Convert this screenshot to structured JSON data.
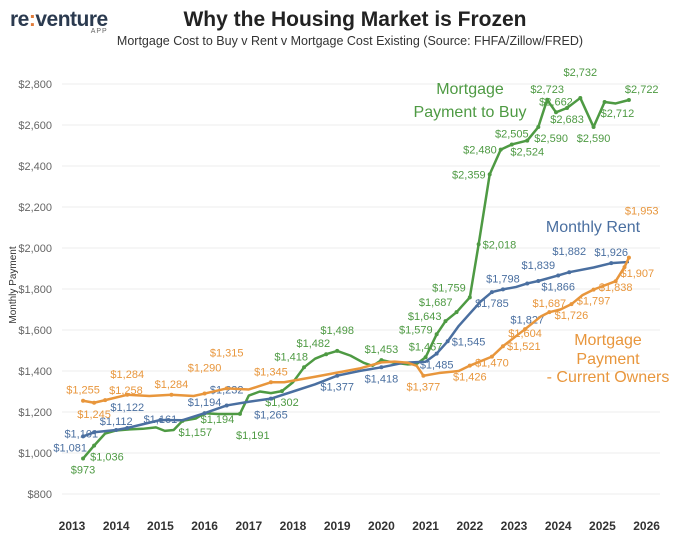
{
  "logo": {
    "brand_a": "re",
    "brand_sep": ":",
    "brand_b": "venture",
    "sub": "APP"
  },
  "chart_data": {
    "type": "line",
    "title": "Why the Housing Market is Frozen",
    "subtitle": "Mortgage Cost to Buy v Rent v Mortgage Cost Existing (Source: FHFA/Zillow/FRED)",
    "xlabel": "",
    "ylabel": "Monthly Payment",
    "xlim": [
      2013,
      2026
    ],
    "ylim": [
      750,
      2900
    ],
    "xticks": [
      "2013",
      "2014",
      "2015",
      "2016",
      "2017",
      "2018",
      "2019",
      "2020",
      "2021",
      "2022",
      "2023",
      "2024",
      "2025",
      "2026"
    ],
    "yticks": [
      800,
      1000,
      1200,
      1400,
      1600,
      1800,
      2000,
      2200,
      2400,
      2600,
      2800
    ],
    "ytick_labels": [
      "$800",
      "$1,000",
      "$1,200",
      "$1,400",
      "$1,600",
      "$1,800",
      "$2,000",
      "$2,200",
      "$2,400",
      "$2,600",
      "$2,800"
    ],
    "grid": "horizontal",
    "series": [
      {
        "name": "Mortgage Payment to Buy",
        "color": "#4e9a43",
        "annotation": [
          "Mortgage",
          "Payment to Buy"
        ],
        "points": [
          [
            2013.25,
            973,
            "b"
          ],
          [
            2013.5,
            1036,
            "br"
          ],
          [
            2013.75,
            1095,
            null
          ],
          [
            2014,
            1110,
            null
          ],
          [
            2014.3,
            1115,
            null
          ],
          [
            2014.6,
            1118,
            null
          ],
          [
            2014.9,
            1125,
            null
          ],
          [
            2015.1,
            1108,
            null
          ],
          [
            2015.3,
            1112,
            null
          ],
          [
            2015.5,
            1157,
            "br"
          ],
          [
            2015.8,
            1168,
            null
          ],
          [
            2016,
            1194,
            "br"
          ],
          [
            2016.3,
            1190,
            null
          ],
          [
            2016.6,
            1190,
            null
          ],
          [
            2016.8,
            1191,
            "br"
          ],
          [
            2017,
            1280,
            null
          ],
          [
            2017.25,
            1300,
            null
          ],
          [
            2017.5,
            1292,
            null
          ],
          [
            2017.75,
            1302,
            "b"
          ],
          [
            2018,
            1345,
            null
          ],
          [
            2018.25,
            1418,
            "al"
          ],
          [
            2018.5,
            1460,
            null
          ],
          [
            2018.75,
            1482,
            "al"
          ],
          [
            2019,
            1498,
            "a"
          ],
          [
            2019.3,
            1475,
            null
          ],
          [
            2019.6,
            1440,
            null
          ],
          [
            2019.8,
            1425,
            null
          ],
          [
            2020,
            1453,
            "a"
          ],
          [
            2020.3,
            1440,
            null
          ],
          [
            2020.6,
            1432,
            null
          ],
          [
            2020.8,
            1435,
            null
          ],
          [
            2021,
            1467,
            "a"
          ],
          [
            2021.25,
            1579,
            "l"
          ],
          [
            2021.45,
            1643,
            "l"
          ],
          [
            2021.7,
            1687,
            "l"
          ],
          [
            2022,
            1759,
            "l"
          ],
          [
            2022.2,
            2018,
            "r"
          ],
          [
            2022.45,
            2359,
            "l"
          ],
          [
            2022.7,
            2480,
            "l"
          ],
          [
            2022.95,
            2505,
            "a"
          ],
          [
            2023.3,
            2524,
            "b"
          ],
          [
            2023.55,
            2590,
            "br"
          ],
          [
            2023.75,
            2723,
            "a"
          ],
          [
            2023.95,
            2662,
            "a"
          ],
          [
            2024.2,
            2683,
            "b"
          ],
          [
            2024.5,
            2732,
            "a"
          ],
          [
            2024.8,
            2590,
            "b"
          ],
          [
            2025.05,
            2712,
            "br"
          ],
          [
            2025.3,
            2705,
            null
          ],
          [
            2025.6,
            2722,
            "ar"
          ]
        ]
      },
      {
        "name": "Monthly Rent",
        "color": "#4a6fa0",
        "annotation": [
          "Monthly Rent"
        ],
        "points": [
          [
            2013.25,
            1081,
            "bl"
          ],
          [
            2013.5,
            1101,
            "bl"
          ],
          [
            2014,
            1112,
            "b"
          ],
          [
            2014.25,
            1122,
            "a"
          ],
          [
            2015,
            1161,
            "a"
          ],
          [
            2015.5,
            1160,
            null
          ],
          [
            2016,
            1194,
            "a"
          ],
          [
            2016.5,
            1232,
            "a"
          ],
          [
            2017,
            1250,
            null
          ],
          [
            2017.5,
            1265,
            "b"
          ],
          [
            2018,
            1300,
            null
          ],
          [
            2018.5,
            1335,
            null
          ],
          [
            2019,
            1377,
            "b"
          ],
          [
            2019.5,
            1400,
            null
          ],
          [
            2020,
            1418,
            "b"
          ],
          [
            2020.5,
            1440,
            null
          ],
          [
            2021,
            1445,
            null
          ],
          [
            2021.25,
            1485,
            "b"
          ],
          [
            2021.5,
            1545,
            "r"
          ],
          [
            2021.75,
            1620,
            null
          ],
          [
            2022,
            1680,
            null
          ],
          [
            2022.25,
            1740,
            null
          ],
          [
            2022.5,
            1785,
            "b"
          ],
          [
            2022.75,
            1798,
            "a"
          ],
          [
            2023.05,
            1810,
            null
          ],
          [
            2023.3,
            1827,
            "b"
          ],
          [
            2023.55,
            1839,
            "a"
          ],
          [
            2024,
            1866,
            "b"
          ],
          [
            2024.25,
            1882,
            "a"
          ],
          [
            2024.8,
            1905,
            null
          ],
          [
            2025.2,
            1926,
            "a"
          ],
          [
            2025.6,
            1932,
            null
          ]
        ]
      },
      {
        "name": "Mortgage Payment - Current Owners",
        "color": "#e8963c",
        "annotation": [
          "Mortgage",
          "Payment",
          "- Current Owners"
        ],
        "points": [
          [
            2013.25,
            1255,
            "a"
          ],
          [
            2013.5,
            1245,
            "b"
          ],
          [
            2013.75,
            1258,
            "r"
          ],
          [
            2014.25,
            1284,
            "a"
          ],
          [
            2014.75,
            1278,
            null
          ],
          [
            2015.25,
            1284,
            "a"
          ],
          [
            2015.75,
            1278,
            null
          ],
          [
            2016,
            1290,
            "a"
          ],
          [
            2016.5,
            1315,
            "a"
          ],
          [
            2017,
            1310,
            null
          ],
          [
            2017.5,
            1345,
            "a"
          ],
          [
            2017.8,
            1345,
            null
          ],
          [
            2018.5,
            1372,
            null
          ],
          [
            2019,
            1392,
            null
          ],
          [
            2019.5,
            1412,
            null
          ],
          [
            2020,
            1442,
            null
          ],
          [
            2020.3,
            1446,
            null
          ],
          [
            2020.6,
            1440,
            null
          ],
          [
            2020.8,
            1425,
            null
          ],
          [
            2020.95,
            1377,
            "b"
          ],
          [
            2021.3,
            1390,
            null
          ],
          [
            2021.75,
            1400,
            null
          ],
          [
            2022,
            1426,
            "b"
          ],
          [
            2022.5,
            1470,
            "b"
          ],
          [
            2022.75,
            1521,
            "r"
          ],
          [
            2023.25,
            1604,
            "a"
          ],
          [
            2023.6,
            1665,
            null
          ],
          [
            2023.8,
            1687,
            "b"
          ],
          [
            2024.05,
            1700,
            null
          ],
          [
            2024.3,
            1726,
            "b"
          ],
          [
            2024.55,
            1770,
            null
          ],
          [
            2024.8,
            1797,
            "b"
          ],
          [
            2025.3,
            1838,
            "b"
          ],
          [
            2025.5,
            1907,
            "br"
          ],
          [
            2025.6,
            1953,
            "ar"
          ]
        ]
      }
    ]
  }
}
